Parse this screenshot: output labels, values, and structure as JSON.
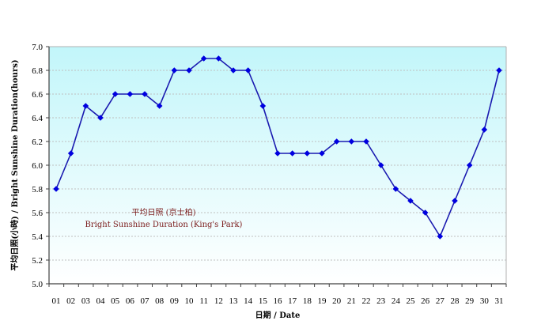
{
  "chart_data": {
    "type": "line",
    "title": "",
    "xlabel": "日期 / Date",
    "ylabel": "平均日照(小時) / Bright Sunshine Duration(hours)",
    "ylim": [
      5.0,
      7.0
    ],
    "yticks": [
      "5.0",
      "5.2",
      "5.4",
      "5.6",
      "5.8",
      "6.0",
      "6.2",
      "6.4",
      "6.6",
      "6.8",
      "7.0"
    ],
    "grid": true,
    "legend": "none",
    "categories": [
      "01",
      "02",
      "03",
      "04",
      "05",
      "06",
      "07",
      "08",
      "09",
      "10",
      "11",
      "12",
      "13",
      "14",
      "15",
      "16",
      "17",
      "18",
      "19",
      "20",
      "21",
      "22",
      "23",
      "24",
      "25",
      "26",
      "27",
      "28",
      "29",
      "30",
      "31"
    ],
    "series": [
      {
        "name": "Bright Sunshine Duration (King's Park)",
        "color": "#1a1ab0",
        "marker_color": "#0000e0",
        "values": [
          5.8,
          6.1,
          6.5,
          6.4,
          6.6,
          6.6,
          6.6,
          6.5,
          6.8,
          6.8,
          6.9,
          6.9,
          6.8,
          6.8,
          6.5,
          6.1,
          6.1,
          6.1,
          6.1,
          6.2,
          6.2,
          6.2,
          6.0,
          5.8,
          5.7,
          5.6,
          5.4,
          5.7,
          6.0,
          6.3,
          6.8
        ]
      }
    ],
    "annotations": [
      {
        "text": "平均日照 (京士柏)",
        "color": "#7a1a1a"
      },
      {
        "text": "Bright Sunshine Duration (King's Park)",
        "color": "#7a1a1a"
      }
    ],
    "colors": {
      "plot_bg_top": "#c2f6fa",
      "plot_bg_bottom": "#ffffff",
      "grid": "#bfbfbf",
      "frame_left_bottom": "#404040",
      "frame_top_right": "#b0b0b0"
    }
  }
}
